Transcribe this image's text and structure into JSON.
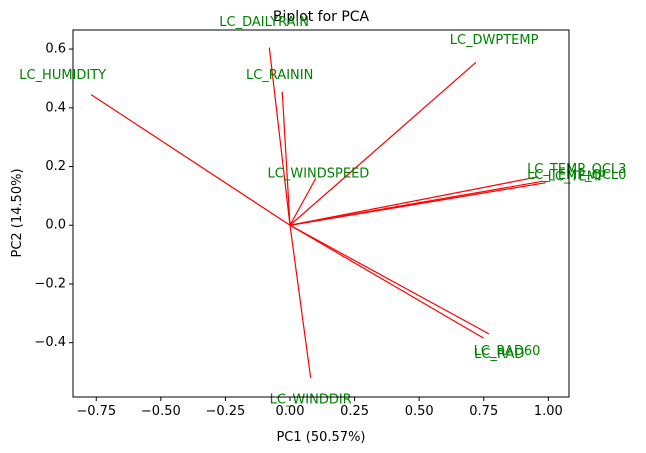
{
  "chart_data": {
    "type": "biplot",
    "title": "Biplot for PCA",
    "xlabel": "PC1 (50.57%)",
    "ylabel": "PC2 (14.50%)",
    "xlim": [
      -0.84,
      1.08
    ],
    "ylim": [
      -0.585,
      0.665
    ],
    "xticks": [
      -0.75,
      -0.5,
      -0.25,
      0.0,
      0.25,
      0.5,
      0.75,
      1.0
    ],
    "xtick_labels": [
      "−0.75",
      "−0.50",
      "−0.25",
      "0.00",
      "0.25",
      "0.50",
      "0.75",
      "1.00"
    ],
    "yticks": [
      -0.4,
      -0.2,
      0.0,
      0.2,
      0.4,
      0.6
    ],
    "ytick_labels": [
      "−0.4",
      "−0.2",
      "0.0",
      "0.2",
      "0.4",
      "0.6"
    ],
    "grid": false,
    "arrow_color": "#ff0000",
    "label_color": "#008000",
    "vectors": [
      {
        "name": "LC_DAILYRAIN",
        "x": -0.08,
        "y": 0.605,
        "label_x": -0.1,
        "label_y": 0.69
      },
      {
        "name": "LC_RAININ",
        "x": -0.03,
        "y": 0.455,
        "label_x": -0.04,
        "label_y": 0.51
      },
      {
        "name": "LC_DWPTEMP",
        "x": 0.72,
        "y": 0.555,
        "label_x": 0.79,
        "label_y": 0.63
      },
      {
        "name": "LC_HUMIDITY",
        "x": -0.77,
        "y": 0.445,
        "label_x": -0.88,
        "label_y": 0.51
      },
      {
        "name": "LC_WINDSPEED",
        "x": 0.1,
        "y": 0.16,
        "label_x": 0.11,
        "label_y": 0.175
      },
      {
        "name": "LC_TEMP_QCL3",
        "x": 0.96,
        "y": 0.165,
        "label_x": 1.11,
        "label_y": 0.19
      },
      {
        "name": "LC_TEMP_QCL0",
        "x": 0.98,
        "y": 0.15,
        "label_x": 1.11,
        "label_y": 0.17
      },
      {
        "name": "LC_TEMP",
        "x": 0.99,
        "y": 0.145,
        "label_x": 1.11,
        "label_y": 0.165
      },
      {
        "name": "LC_RAD60",
        "x": 0.77,
        "y": -0.37,
        "label_x": 0.84,
        "label_y": -0.43
      },
      {
        "name": "LC_RAD",
        "x": 0.75,
        "y": -0.385,
        "label_x": 0.81,
        "label_y": -0.44
      },
      {
        "name": "LC_WINDDIR",
        "x": 0.08,
        "y": -0.52,
        "label_x": 0.08,
        "label_y": -0.595
      }
    ]
  }
}
